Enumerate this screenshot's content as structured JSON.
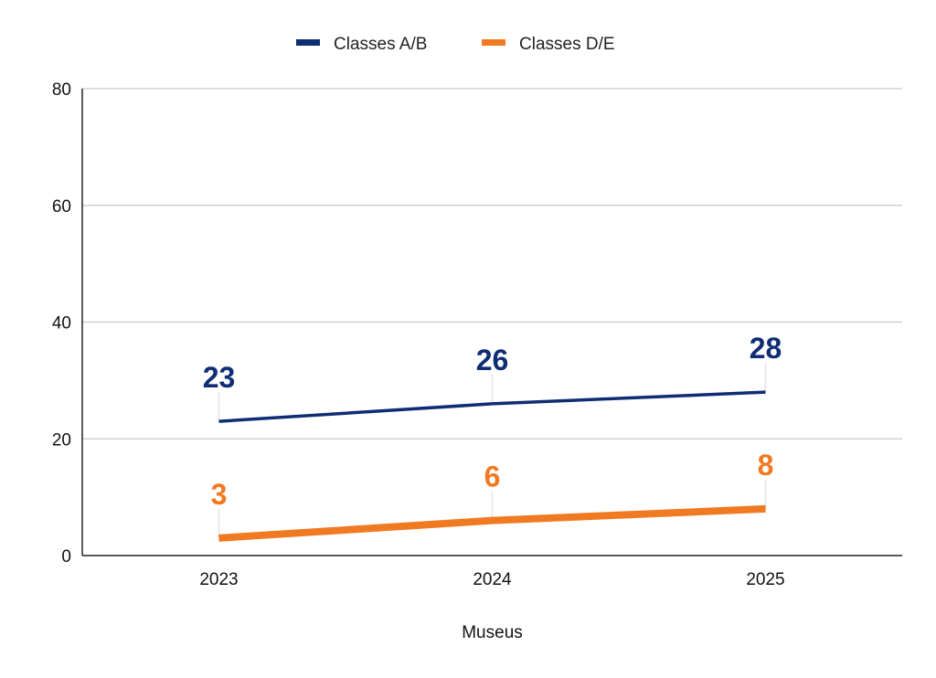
{
  "chart_data": {
    "type": "line",
    "title": "",
    "xlabel": "Museus",
    "ylabel": "",
    "categories": [
      "2023",
      "2024",
      "2025"
    ],
    "ylim": [
      0,
      80
    ],
    "yticks": [
      0,
      20,
      40,
      60,
      80
    ],
    "grid": true,
    "legend_position": "top",
    "series": [
      {
        "name": "Classes A/B",
        "values": [
          23,
          26,
          28
        ],
        "color": "#0f2d74"
      },
      {
        "name": "Classes D/E",
        "values": [
          3,
          6,
          8
        ],
        "color": "#f07a22"
      }
    ]
  }
}
